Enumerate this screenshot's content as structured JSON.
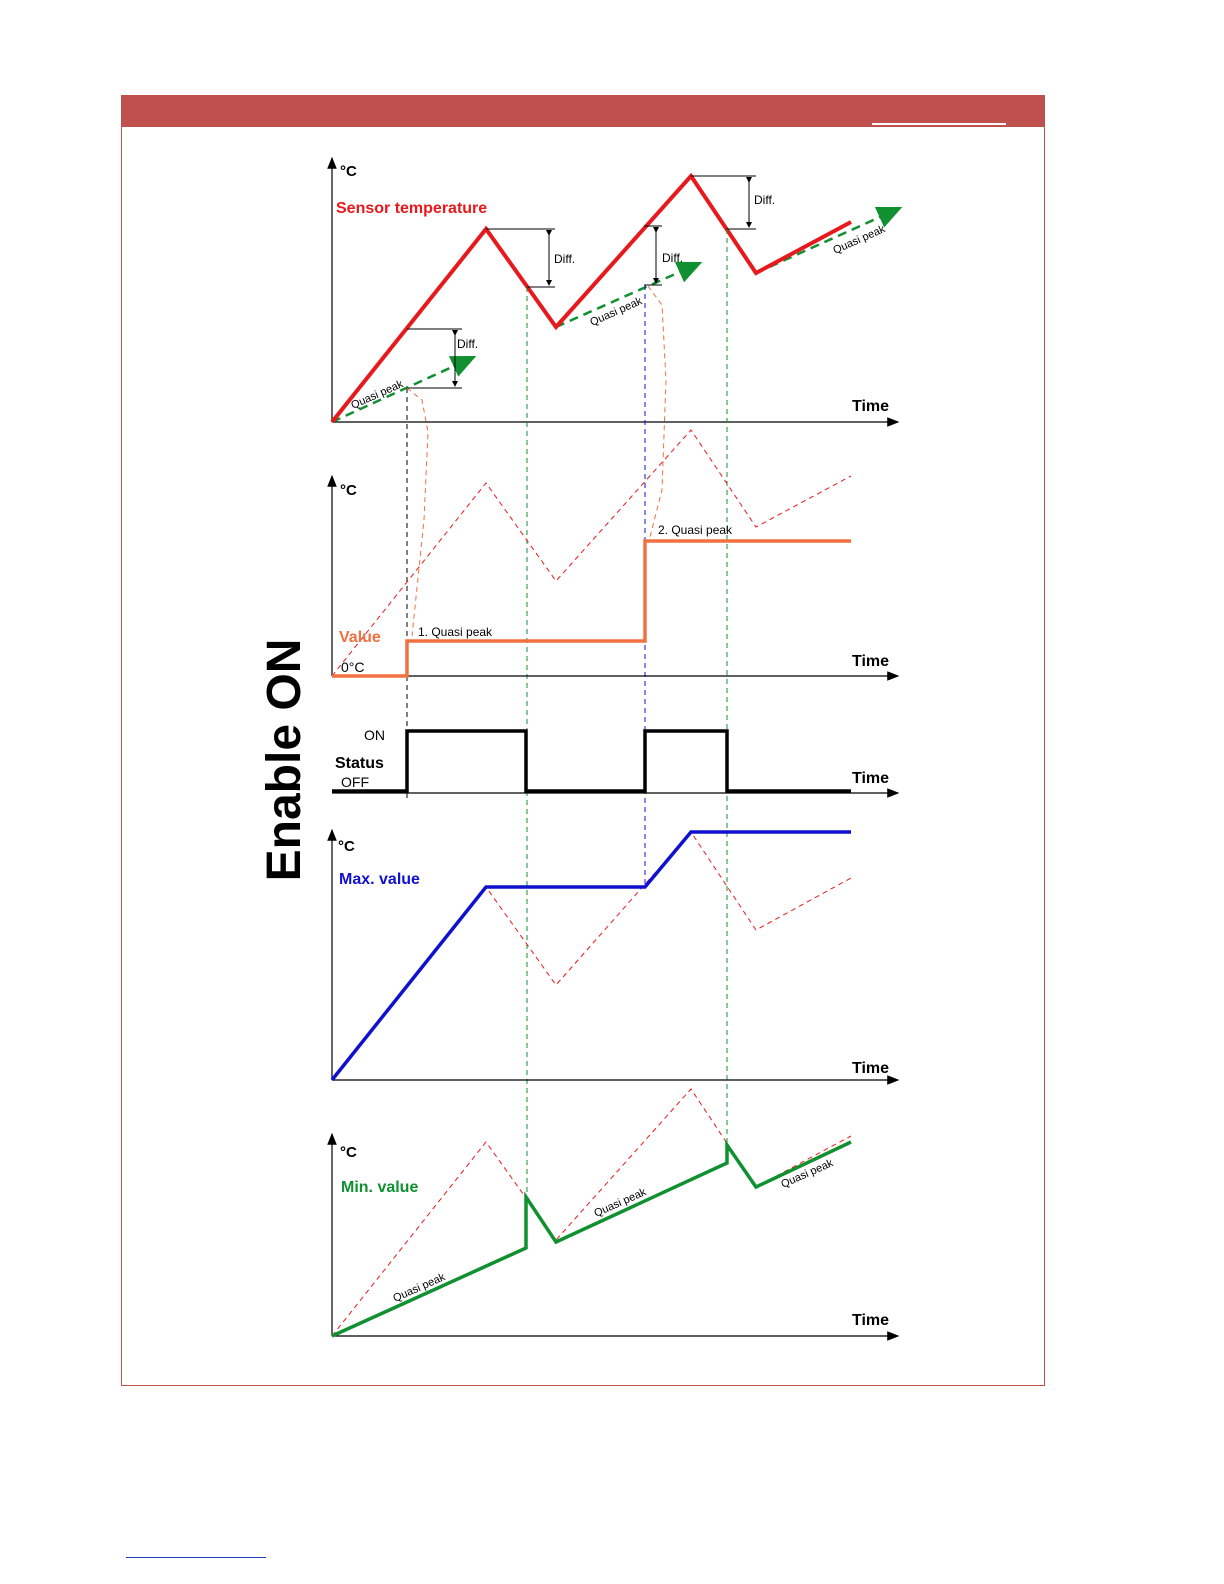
{
  "side_title": "Enable ON",
  "colors": {
    "frame": "#c0504d",
    "sensor": "#e8191c",
    "value": "#f07040",
    "status": "#000000",
    "max": "#1010d0",
    "min": "#109030",
    "quasi_peak_arrow": "#109030"
  },
  "panels": {
    "sensor": {
      "y_unit": "°C",
      "x_label": "Time",
      "series_label": "Sensor temperature",
      "diff_labels": [
        "Diff.",
        "Diff.",
        "Diff.",
        "Diff."
      ],
      "quasi_peak_labels": [
        "Quasi peak",
        "Quasi peak",
        "Quasi peak"
      ]
    },
    "value": {
      "y_unit": "°C",
      "x_label": "Time",
      "series_label": "Value",
      "zero_label": "0°C",
      "annotations": [
        "1. Quasi peak",
        "2. Quasi peak"
      ]
    },
    "status": {
      "x_label": "Time",
      "series_label": "Status",
      "on_label": "ON",
      "off_label": "OFF"
    },
    "max": {
      "y_unit": "°C",
      "x_label": "Time",
      "series_label": "Max. value"
    },
    "min": {
      "y_unit": "°C",
      "x_label": "Time",
      "series_label": "Min. value",
      "quasi_peak_labels": [
        "Quasi peak",
        "Quasi peak",
        "Quasi peak"
      ]
    }
  }
}
